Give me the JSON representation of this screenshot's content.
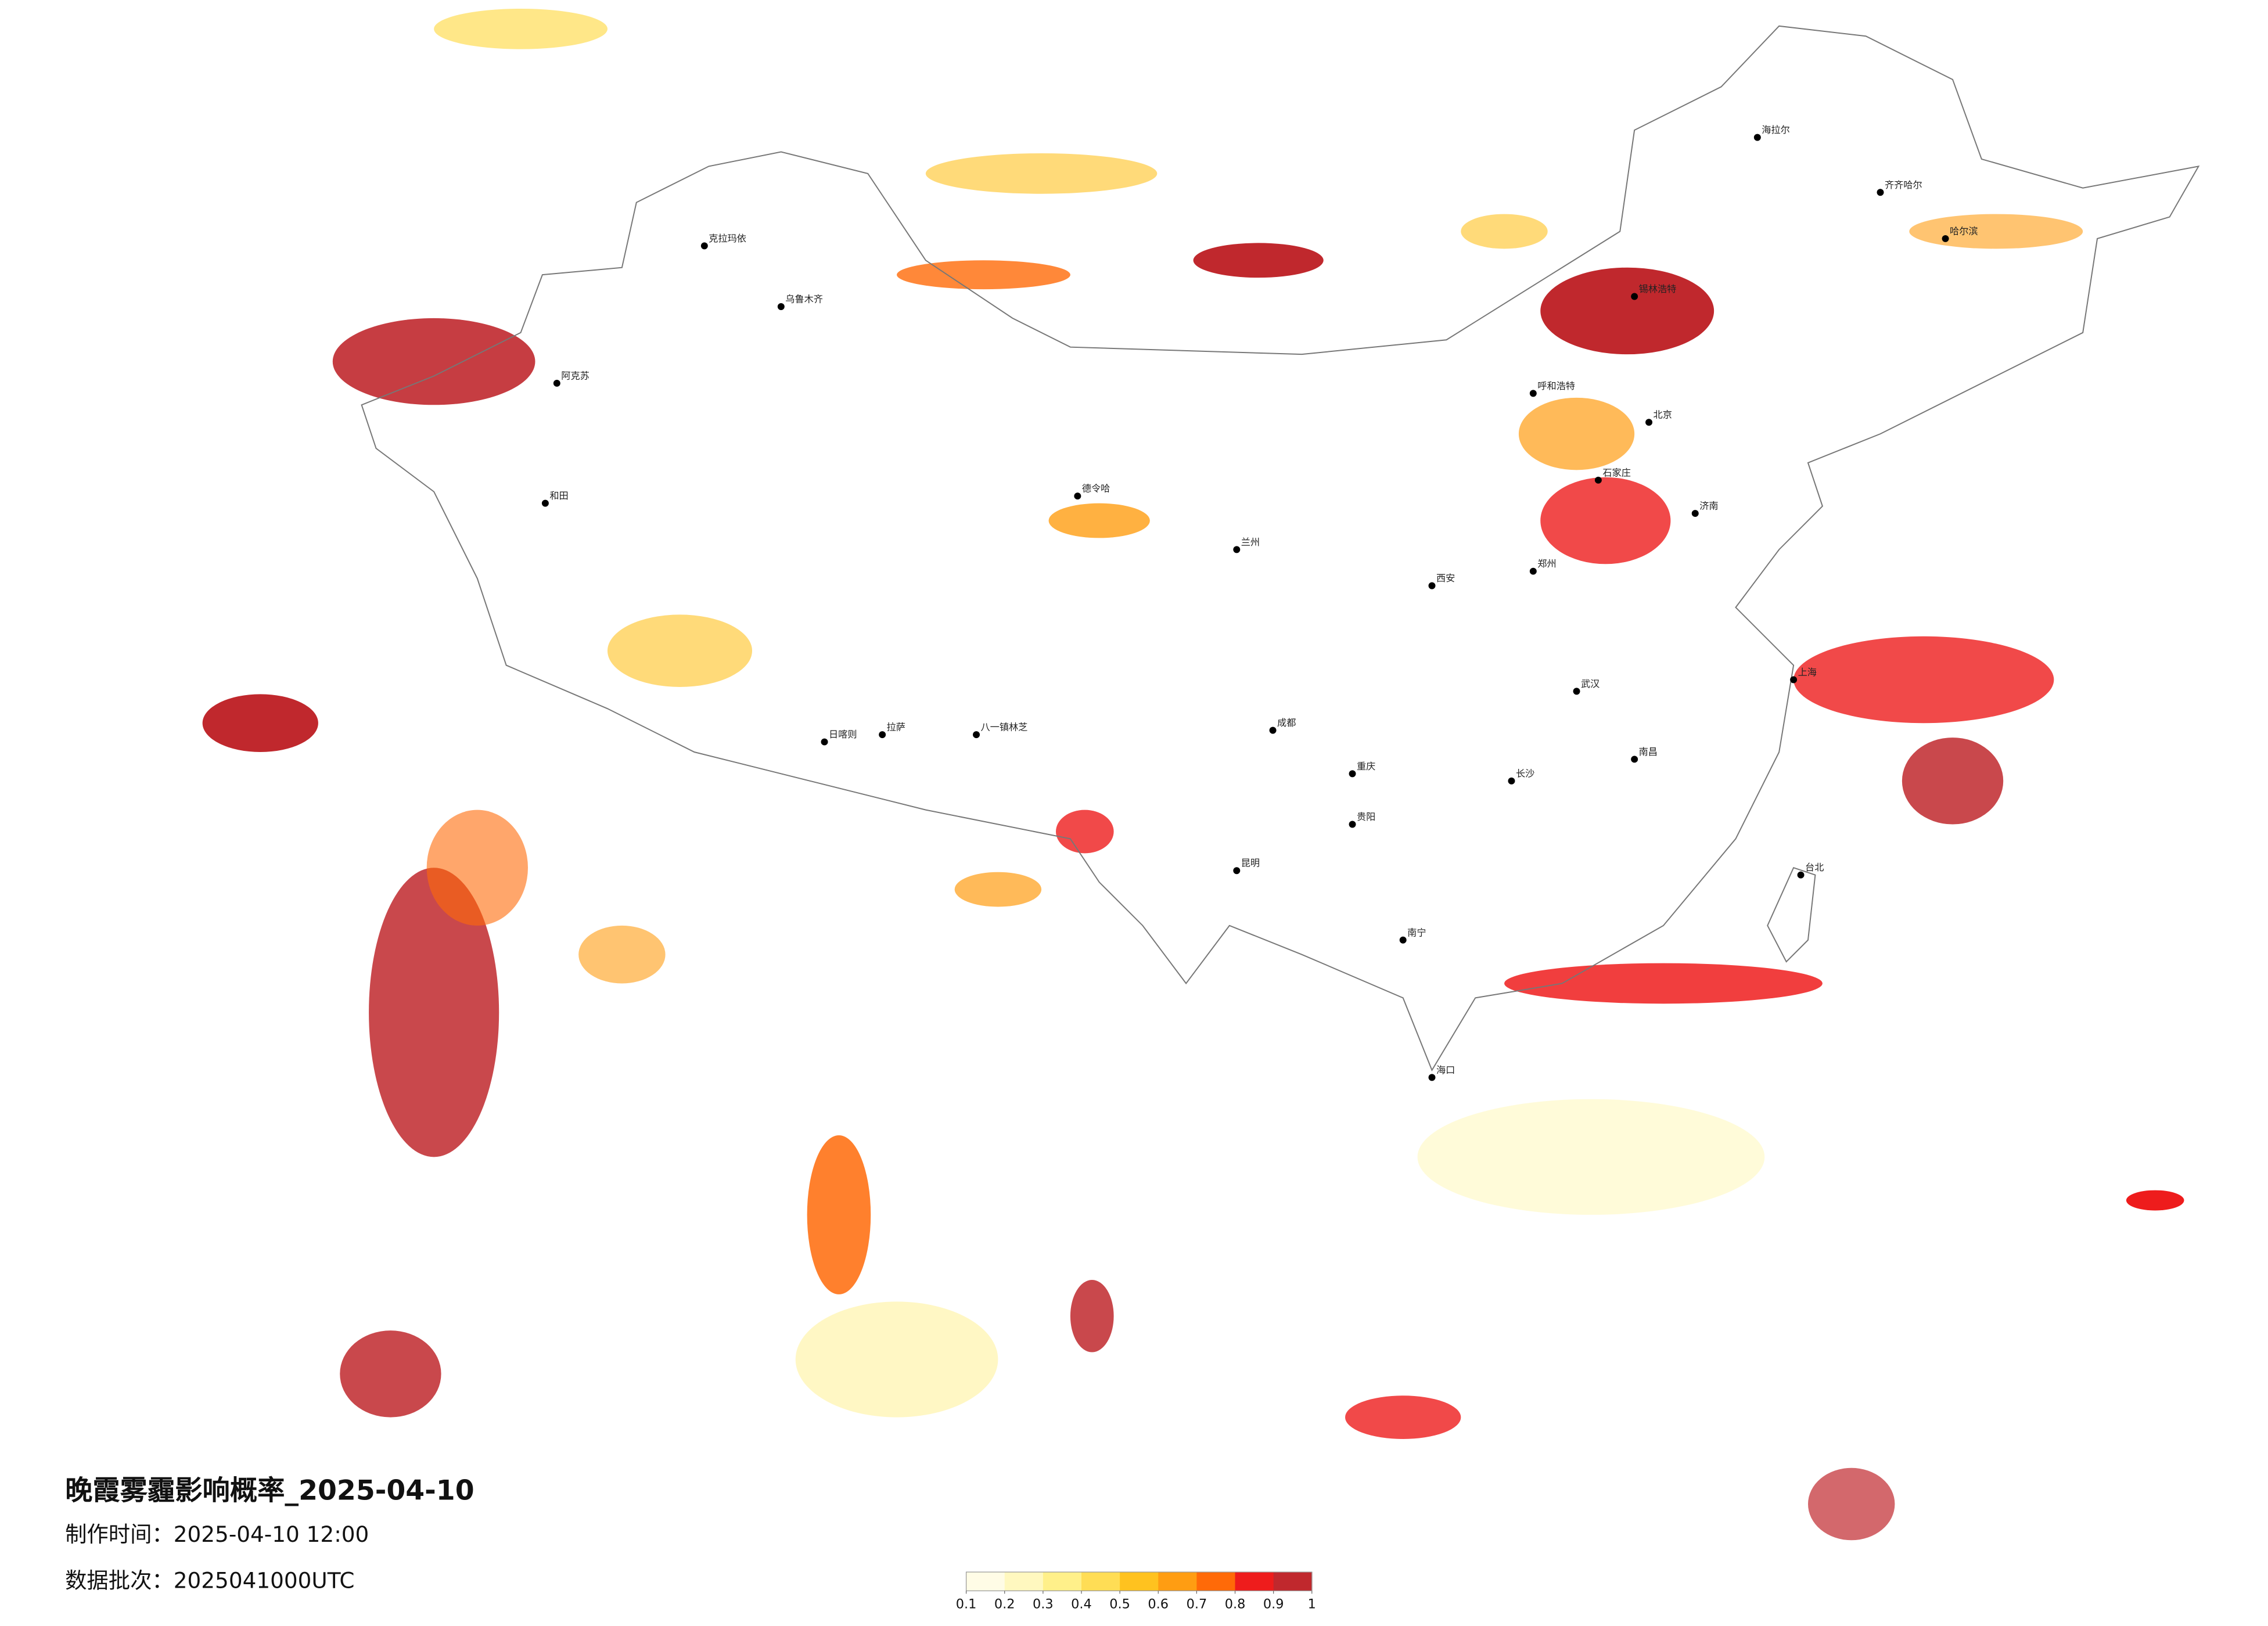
{
  "title": "晚霞雾霾影响概率_2025-04-10",
  "made_time": "制作时间：2025-04-10 12:00",
  "batch": "数据批次：2025041000UTC",
  "legend": {
    "ticks": [
      0.1,
      0.2,
      0.3,
      0.4,
      0.5,
      0.6,
      0.7,
      0.8,
      0.9,
      1
    ],
    "colors": [
      "#fffce6",
      "#fff8bf",
      "#fff08a",
      "#ffdd55",
      "#ffc21f",
      "#ff9d12",
      "#ff6a08",
      "#ee1c1c",
      "#c0282d"
    ]
  },
  "cities": [
    "海拉尔",
    "齐齐哈尔",
    "哈尔滨",
    "锡林浩特",
    "呼和浩特",
    "北京",
    "石家庄",
    "济南",
    "克拉玛依",
    "阿克苏",
    "和田",
    "德令哈",
    "日喀则",
    "拉萨",
    "八一镇林芝",
    "成都",
    "重庆",
    "贵阳",
    "昆明",
    "南宁",
    "海口",
    "长沙",
    "武汉",
    "南昌",
    "上海",
    "台北",
    "郑州",
    "西安",
    "兰州",
    "乌鲁木齐"
  ]
}
